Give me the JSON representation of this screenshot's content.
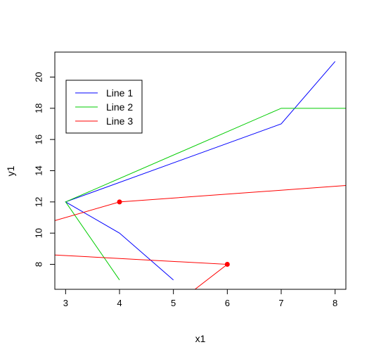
{
  "chart_data": {
    "type": "line",
    "title": "",
    "xlabel": "x1",
    "ylabel": "y1",
    "xlim": [
      2.8,
      8.2
    ],
    "ylim": [
      6.4,
      21.6
    ],
    "grid": false,
    "legend_position": "top-left",
    "x_ticks": [
      3,
      4,
      5,
      6,
      7,
      8
    ],
    "y_ticks": [
      8,
      10,
      12,
      14,
      16,
      18,
      20
    ],
    "series": [
      {
        "name": "Line 1",
        "color": "#0000ff",
        "points": [
          [
            5,
            7
          ],
          [
            4,
            10
          ],
          [
            3,
            12
          ],
          [
            7,
            17
          ],
          [
            8,
            21
          ]
        ]
      },
      {
        "name": "Line 2",
        "color": "#00cc00",
        "points": [
          [
            4,
            7
          ],
          [
            3,
            12
          ],
          [
            7,
            18
          ],
          [
            8.2,
            18
          ]
        ]
      },
      {
        "name": "Line 3",
        "color": "#ff0000",
        "points": [
          [
            2.8,
            10.8
          ],
          [
            4,
            12
          ],
          [
            8.2,
            13.05
          ]
        ],
        "markers": [
          [
            4,
            12
          ]
        ]
      },
      {
        "name": "",
        "color": "#ff0000",
        "points": [
          [
            2.8,
            8.6
          ],
          [
            6,
            8
          ],
          [
            5.4,
            6.4
          ]
        ],
        "markers": [
          [
            6,
            8
          ]
        ]
      }
    ]
  }
}
